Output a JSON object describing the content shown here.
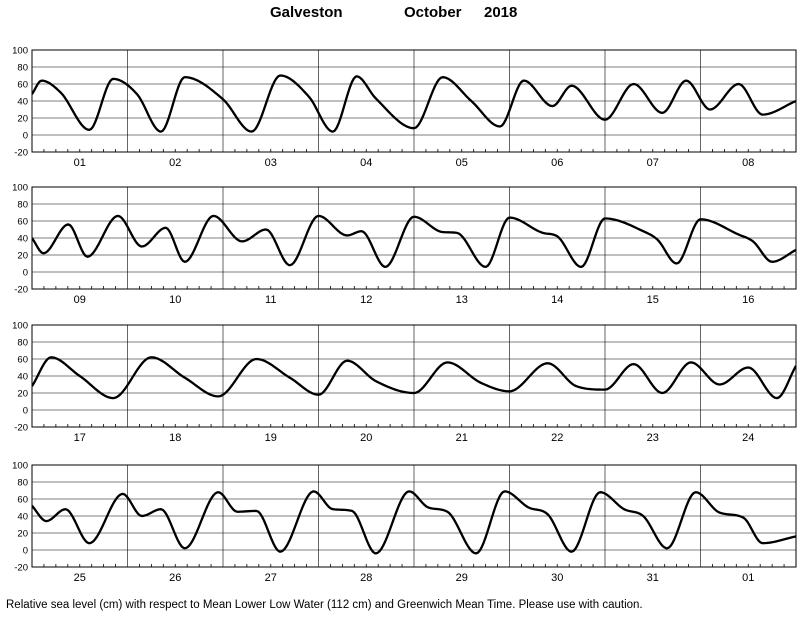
{
  "title": {
    "station": "Galveston",
    "month": "October",
    "year": "2018"
  },
  "footnote": "Relative sea level (cm) with respect to Mean Lower Low Water (112 cm) and Greenwich Mean Time. Please use with caution.",
  "chart_data": [
    {
      "type": "line",
      "xlabel": "",
      "ylabel": "",
      "ylim": [
        -20,
        100
      ],
      "yticks": [
        -20,
        0,
        20,
        40,
        60,
        80,
        100
      ],
      "grid": "vertical day boundaries",
      "line_color": "#000000",
      "categories": [
        "01",
        "02",
        "03",
        "04",
        "05",
        "06",
        "07",
        "08"
      ],
      "series": [
        {
          "x": [
            0,
            0.1,
            0.3,
            0.6,
            0.85,
            1.1,
            1.35,
            1.6,
            2,
            2.3,
            2.6,
            2.9,
            3.15,
            3.4,
            3.6,
            4,
            4.3,
            4.6,
            4.9,
            5.15,
            5.45,
            5.65,
            6,
            6.3,
            6.6,
            6.85,
            7.1,
            7.4,
            7.65,
            8
          ],
          "y": [
            48,
            64,
            50,
            6,
            66,
            48,
            4,
            68,
            42,
            4,
            70,
            45,
            4,
            69,
            43,
            8,
            68,
            40,
            10,
            64,
            34,
            58,
            18,
            60,
            26,
            64,
            30,
            60,
            24,
            40
          ]
        }
      ]
    },
    {
      "type": "line",
      "xlabel": "",
      "ylabel": "",
      "ylim": [
        -20,
        100
      ],
      "yticks": [
        -20,
        0,
        20,
        40,
        60,
        80,
        100
      ],
      "grid": "vertical day boundaries",
      "line_color": "#000000",
      "categories": [
        "09",
        "10",
        "11",
        "12",
        "13",
        "14",
        "15",
        "16"
      ],
      "series": [
        {
          "x": [
            0,
            0.12,
            0.38,
            0.58,
            0.9,
            1.15,
            1.4,
            1.6,
            1.9,
            2.2,
            2.45,
            2.7,
            3,
            3.3,
            3.45,
            3.7,
            4,
            4.3,
            4.45,
            4.75,
            5,
            5.35,
            5.5,
            5.75,
            6,
            6.4,
            6.55,
            6.75,
            7,
            7.4,
            7.55,
            7.75,
            8
          ],
          "y": [
            40,
            22,
            56,
            18,
            66,
            30,
            52,
            12,
            66,
            36,
            50,
            8,
            66,
            43,
            48,
            6,
            65,
            47,
            46,
            6,
            64,
            46,
            42,
            6,
            63,
            48,
            38,
            10,
            62,
            44,
            36,
            12,
            26
          ]
        }
      ]
    },
    {
      "type": "line",
      "xlabel": "",
      "ylabel": "",
      "ylim": [
        -20,
        100
      ],
      "yticks": [
        -20,
        0,
        20,
        40,
        60,
        80,
        100
      ],
      "grid": "vertical day boundaries",
      "line_color": "#000000",
      "categories": [
        "17",
        "18",
        "19",
        "20",
        "21",
        "22",
        "23",
        "24"
      ],
      "series": [
        {
          "x": [
            0,
            0.2,
            0.5,
            0.85,
            1.25,
            1.6,
            1.95,
            2.35,
            2.7,
            3,
            3.3,
            3.6,
            4,
            4.35,
            4.7,
            5,
            5.4,
            5.7,
            6,
            6.3,
            6.6,
            6.9,
            7.2,
            7.5,
            7.8,
            8
          ],
          "y": [
            28,
            62,
            40,
            14,
            62,
            38,
            16,
            60,
            38,
            18,
            58,
            34,
            20,
            56,
            32,
            22,
            55,
            28,
            24,
            54,
            20,
            56,
            30,
            50,
            14,
            52
          ]
        }
      ]
    },
    {
      "type": "line",
      "xlabel": "",
      "ylabel": "",
      "ylim": [
        -20,
        100
      ],
      "yticks": [
        -20,
        0,
        20,
        40,
        60,
        80,
        100
      ],
      "grid": "vertical day boundaries",
      "line_color": "#000000",
      "categories": [
        "25",
        "26",
        "27",
        "28",
        "29",
        "30",
        "31",
        "01"
      ],
      "series": [
        {
          "x": [
            0,
            0.15,
            0.35,
            0.6,
            0.95,
            1.15,
            1.35,
            1.6,
            1.95,
            2.15,
            2.35,
            2.6,
            2.95,
            3.15,
            3.35,
            3.6,
            3.95,
            4.15,
            4.35,
            4.65,
            4.95,
            5.2,
            5.4,
            5.65,
            5.95,
            6.2,
            6.4,
            6.65,
            6.95,
            7.2,
            7.45,
            7.65,
            8
          ],
          "y": [
            52,
            34,
            48,
            8,
            66,
            40,
            48,
            2,
            68,
            45,
            46,
            -2,
            69,
            48,
            46,
            -4,
            69,
            50,
            45,
            -4,
            69,
            50,
            42,
            -2,
            68,
            48,
            40,
            2,
            68,
            44,
            38,
            8,
            16
          ]
        }
      ]
    }
  ]
}
